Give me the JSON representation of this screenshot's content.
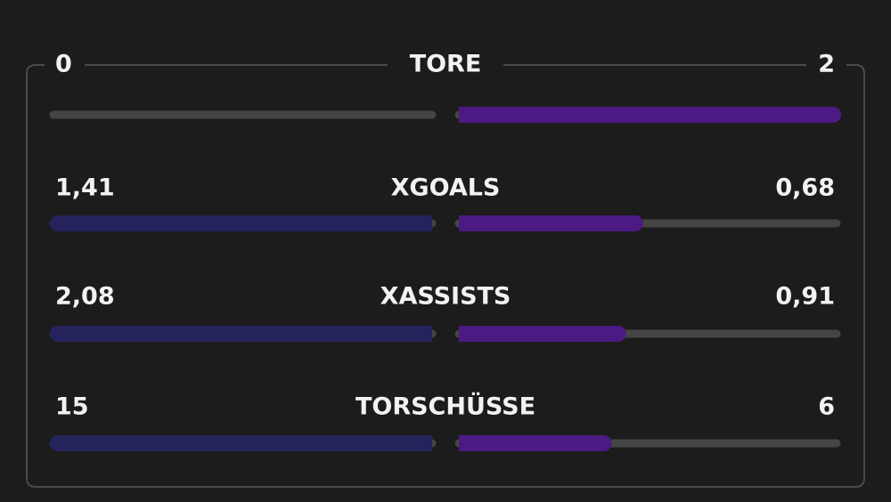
{
  "stats": [
    {
      "label": "TORE",
      "home": 0,
      "away": 2
    },
    {
      "label": "XGOALS",
      "home": {
        "value": 1.41,
        "label": "1,41"
      },
      "away": {
        "value": 0.68,
        "label": "0,68"
      }
    },
    {
      "label": "XASSISTS",
      "home": {
        "value": 2.08,
        "label": "2,08"
      },
      "away": {
        "value": 0.91,
        "label": "0,91"
      }
    },
    {
      "label": "TORSCHÜSSE",
      "home": 15,
      "away": 6
    }
  ]
}
